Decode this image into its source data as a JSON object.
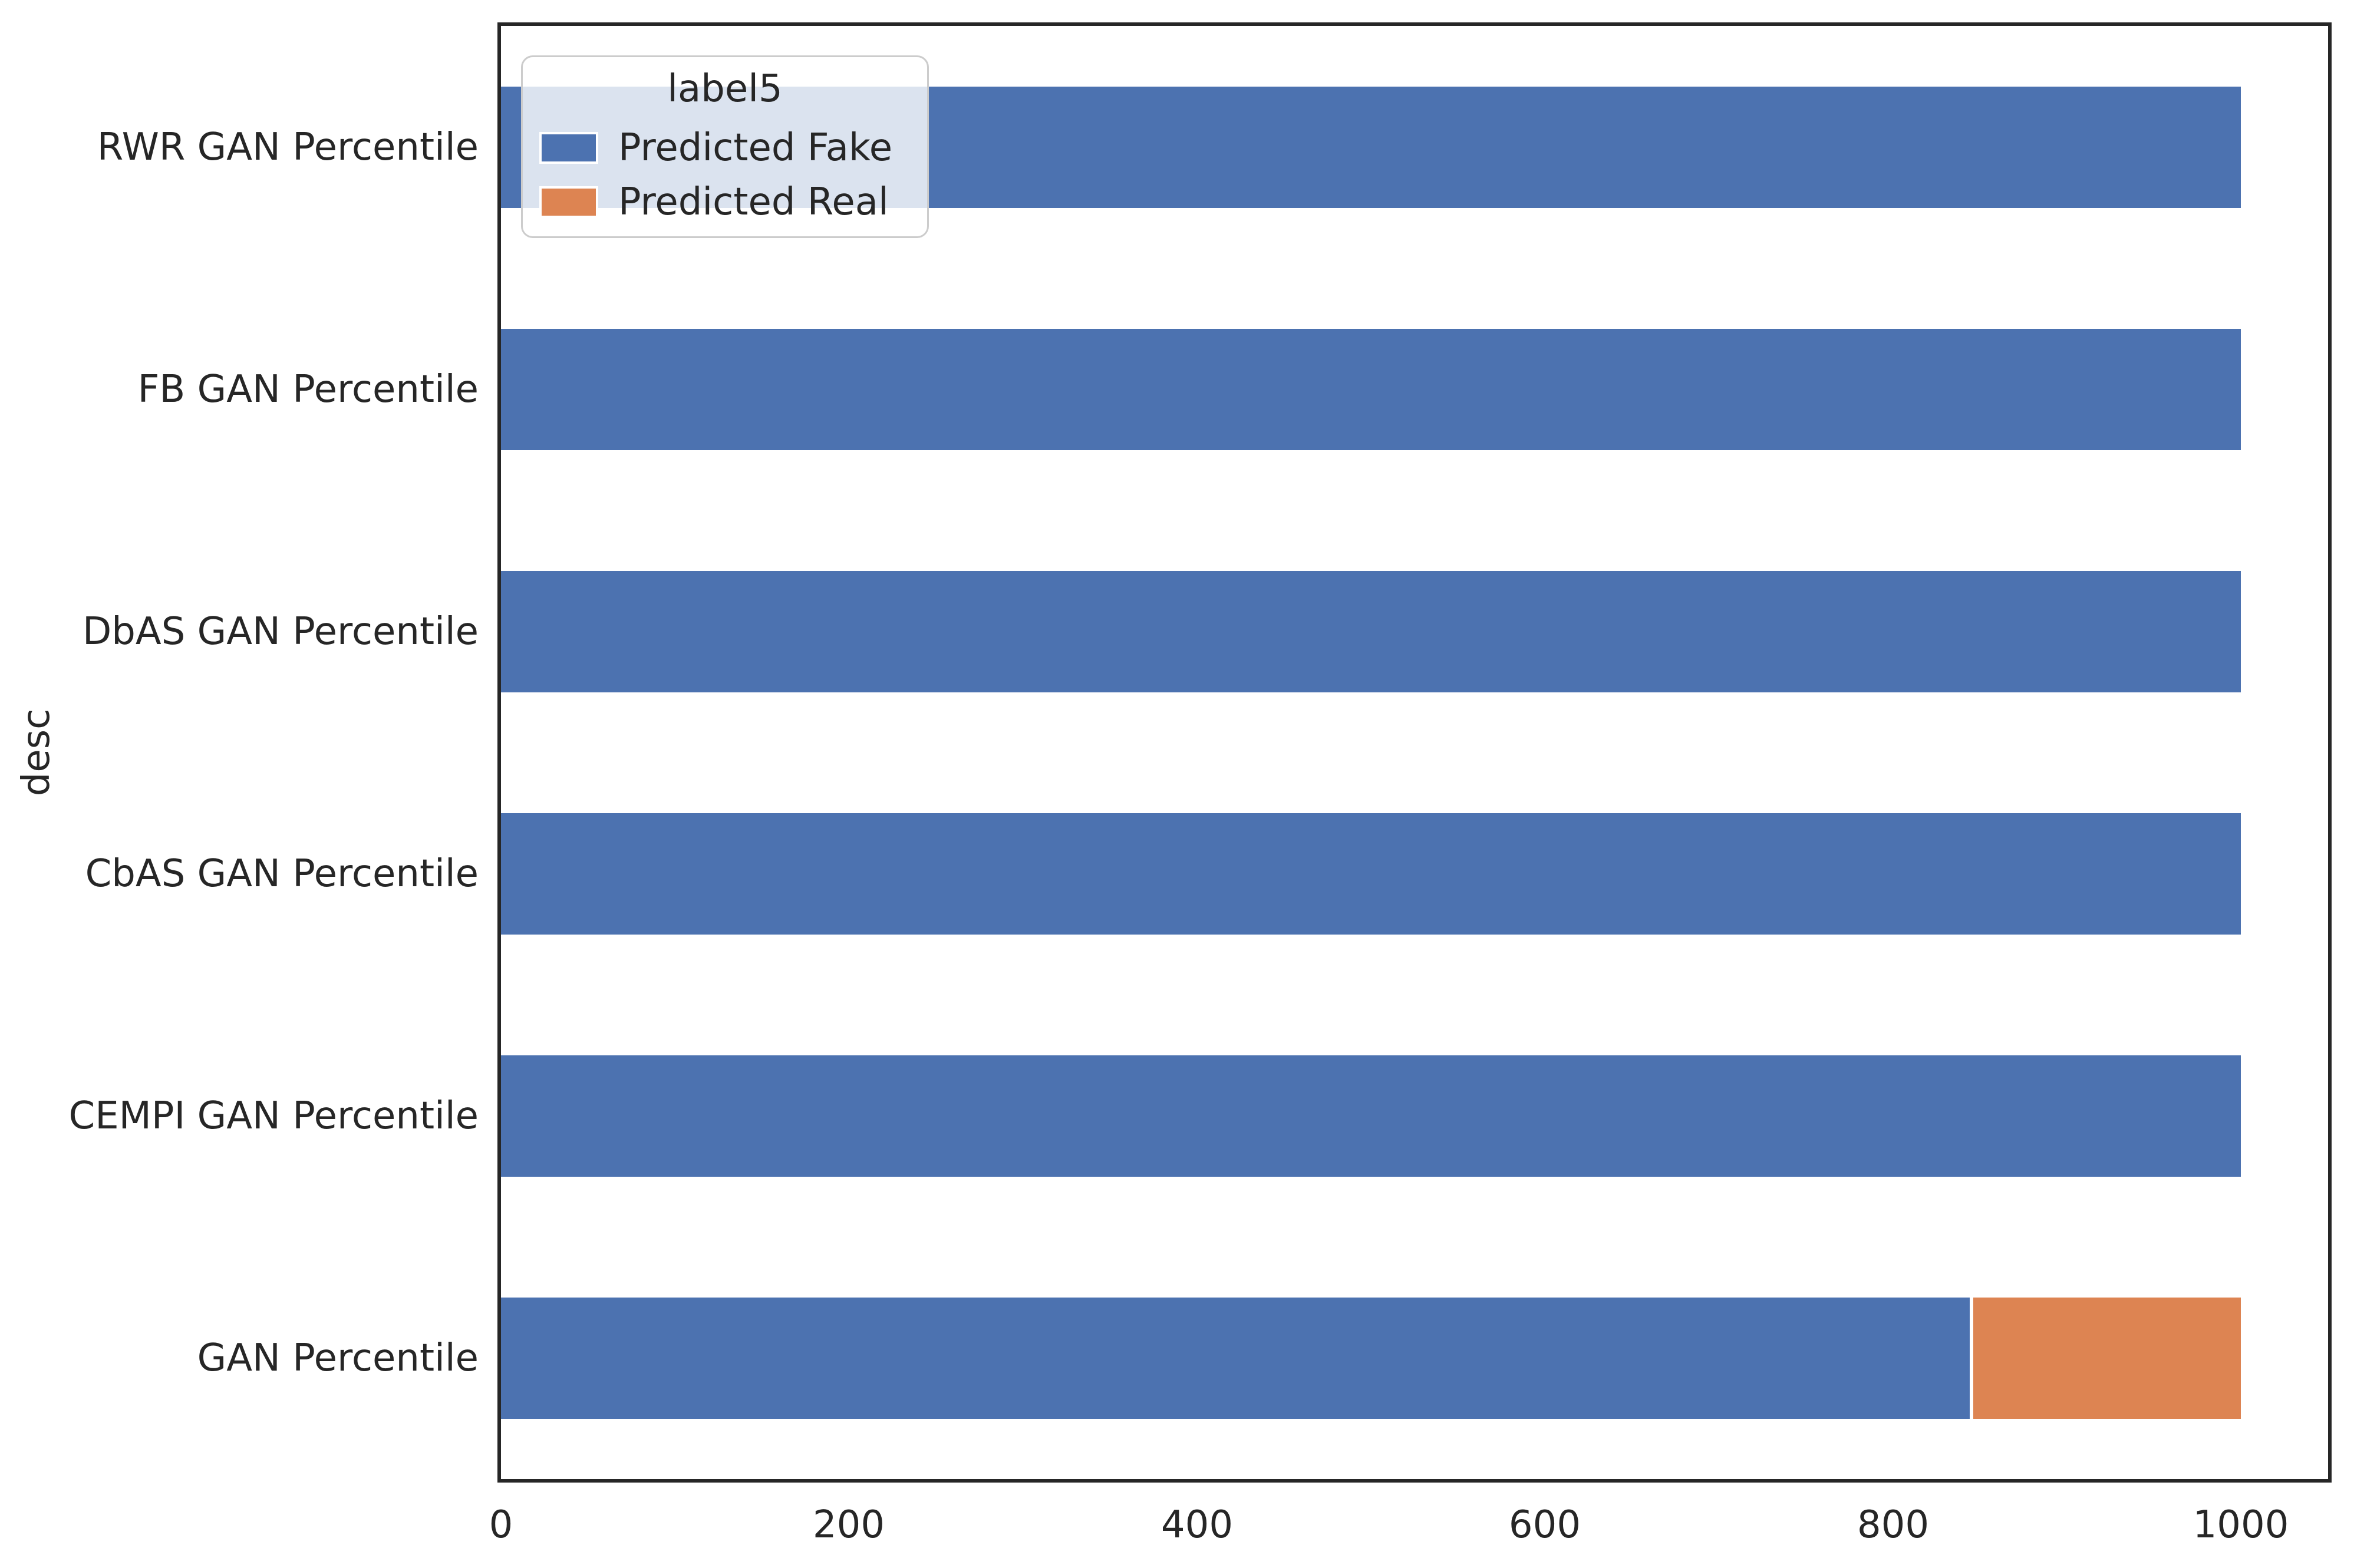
{
  "chart_data": {
    "type": "bar",
    "orientation": "horizontal",
    "stacked": true,
    "title": "",
    "xlabel": "",
    "ylabel": "desc",
    "categories": [
      "RWR GAN Percentile",
      "FB GAN Percentile",
      "DbAS GAN Percentile",
      "CbAS GAN Percentile",
      "CEMPI GAN Percentile",
      "GAN Percentile"
    ],
    "series": [
      {
        "name": "Predicted Fake",
        "color": "#4C72B0",
        "values": [
          1000,
          1000,
          1000,
          1000,
          1000,
          845
        ]
      },
      {
        "name": "Predicted Real",
        "color": "#DD8452",
        "values": [
          0,
          0,
          0,
          0,
          0,
          155
        ]
      }
    ],
    "xlim": [
      0,
      1050
    ],
    "xticks": [
      0,
      200,
      400,
      600,
      800,
      1000
    ],
    "legend": {
      "title": "label5",
      "position": "upper left"
    },
    "grid": false,
    "style": {
      "spine_color": "#262626",
      "text_color": "#262626",
      "legend_border": "#cccccc",
      "segment_gap_color": "#ffffff"
    }
  }
}
